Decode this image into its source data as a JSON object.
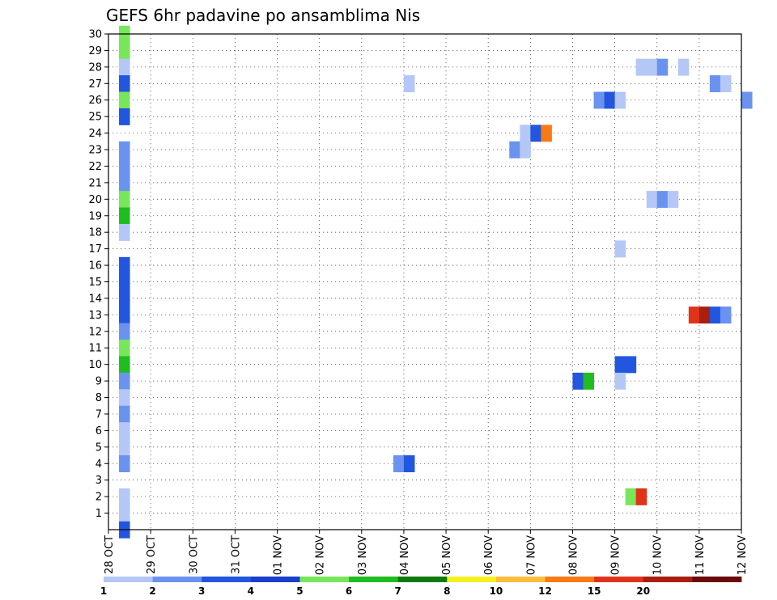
{
  "chart_data": {
    "type": "heatmap",
    "title": "GEFS 6hr padavine po ansamblima Nis",
    "xlabel": "",
    "ylabel": "",
    "x_tick_labels": [
      "28 OCT",
      "29 OCT",
      "30 OCT",
      "31 OCT",
      "01 NOV",
      "02 NOV",
      "03 NOV",
      "04 NOV",
      "05 NOV",
      "06 NOV",
      "07 NOV",
      "08 NOV",
      "09 NOV",
      "10 NOV",
      "11 NOV",
      "12 NOV"
    ],
    "x_unit": "days from 28 OCT",
    "y_tick_labels": [
      "1",
      "2",
      "3",
      "4",
      "5",
      "6",
      "7",
      "8",
      "9",
      "10",
      "11",
      "12",
      "13",
      "14",
      "15",
      "16",
      "17",
      "18",
      "19",
      "20",
      "21",
      "22",
      "23",
      "24",
      "25",
      "26",
      "27",
      "28",
      "29",
      "30"
    ],
    "y_range": [
      0,
      30
    ],
    "grid": true,
    "legend_position": "bottom",
    "levels": [
      {
        "label": "1",
        "color": "#b4c7f7"
      },
      {
        "label": "2",
        "color": "#6a93f0"
      },
      {
        "label": "3",
        "color": "#2256de"
      },
      {
        "label": "4",
        "color": "#1a3fcc"
      },
      {
        "label": "5",
        "color": "#78e65a"
      },
      {
        "label": "6",
        "color": "#1fbd1f"
      },
      {
        "label": "7",
        "color": "#0f7a0f"
      },
      {
        "label": "8",
        "color": "#f5f020"
      },
      {
        "label": "10",
        "color": "#fbbd3c"
      },
      {
        "label": "12",
        "color": "#f77a14"
      },
      {
        "label": "15",
        "color": "#e0331a"
      },
      {
        "label": "20",
        "color": "#a81e0f"
      },
      {
        "label": "",
        "color": "#6b0a0a"
      }
    ],
    "cells": [
      {
        "member": 30,
        "x": 0.25,
        "level": 4
      },
      {
        "member": 29,
        "x": 0.25,
        "level": 4
      },
      {
        "member": 28,
        "x": 0.25,
        "level": 0
      },
      {
        "member": 27,
        "x": 0.25,
        "level": 2
      },
      {
        "member": 26,
        "x": 0.25,
        "level": 4
      },
      {
        "member": 25,
        "x": 0.25,
        "level": 2
      },
      {
        "member": 23,
        "x": 0.25,
        "level": 1
      },
      {
        "member": 22,
        "x": 0.25,
        "level": 1
      },
      {
        "member": 21,
        "x": 0.25,
        "level": 1
      },
      {
        "member": 20,
        "x": 0.25,
        "level": 4
      },
      {
        "member": 19,
        "x": 0.25,
        "level": 5
      },
      {
        "member": 18,
        "x": 0.25,
        "level": 0
      },
      {
        "member": 16,
        "x": 0.25,
        "level": 2
      },
      {
        "member": 15,
        "x": 0.25,
        "level": 2
      },
      {
        "member": 14,
        "x": 0.25,
        "level": 2
      },
      {
        "member": 13,
        "x": 0.25,
        "level": 2
      },
      {
        "member": 12,
        "x": 0.25,
        "level": 1
      },
      {
        "member": 11,
        "x": 0.25,
        "level": 4
      },
      {
        "member": 10,
        "x": 0.25,
        "level": 5
      },
      {
        "member": 9,
        "x": 0.25,
        "level": 1
      },
      {
        "member": 8,
        "x": 0.25,
        "level": 0
      },
      {
        "member": 7,
        "x": 0.25,
        "level": 1
      },
      {
        "member": 6,
        "x": 0.25,
        "level": 0
      },
      {
        "member": 5,
        "x": 0.25,
        "level": 0
      },
      {
        "member": 4,
        "x": 0.25,
        "level": 1
      },
      {
        "member": 2,
        "x": 0.25,
        "level": 0
      },
      {
        "member": 1,
        "x": 0.25,
        "level": 0
      },
      {
        "member": 0,
        "x": 0.25,
        "level": 2
      },
      {
        "member": 28,
        "x": 12.5,
        "level": 0
      },
      {
        "member": 28,
        "x": 12.75,
        "level": 0
      },
      {
        "member": 28,
        "x": 13.0,
        "level": 1
      },
      {
        "member": 28,
        "x": 13.5,
        "level": 0
      },
      {
        "member": 27,
        "x": 7.0,
        "level": 0
      },
      {
        "member": 27,
        "x": 14.25,
        "level": 1
      },
      {
        "member": 27,
        "x": 14.5,
        "level": 0
      },
      {
        "member": 26,
        "x": 11.5,
        "level": 1
      },
      {
        "member": 26,
        "x": 11.75,
        "level": 2
      },
      {
        "member": 26,
        "x": 12.0,
        "level": 0
      },
      {
        "member": 26,
        "x": 15.0,
        "level": 1
      },
      {
        "member": 24,
        "x": 9.75,
        "level": 0
      },
      {
        "member": 24,
        "x": 10.0,
        "level": 2
      },
      {
        "member": 24,
        "x": 10.25,
        "level": 9
      },
      {
        "member": 23,
        "x": 9.5,
        "level": 1
      },
      {
        "member": 23,
        "x": 9.75,
        "level": 0
      },
      {
        "member": 20,
        "x": 12.75,
        "level": 0
      },
      {
        "member": 20,
        "x": 13.0,
        "level": 1
      },
      {
        "member": 20,
        "x": 13.25,
        "level": 0
      },
      {
        "member": 17,
        "x": 12.0,
        "level": 0
      },
      {
        "member": 13,
        "x": 13.75,
        "level": 10
      },
      {
        "member": 13,
        "x": 14.0,
        "level": 11
      },
      {
        "member": 13,
        "x": 14.25,
        "level": 2
      },
      {
        "member": 13,
        "x": 14.5,
        "level": 1
      },
      {
        "member": 10,
        "x": 12.0,
        "level": 2
      },
      {
        "member": 10,
        "x": 12.25,
        "level": 2
      },
      {
        "member": 9,
        "x": 11.0,
        "level": 2
      },
      {
        "member": 9,
        "x": 11.25,
        "level": 5
      },
      {
        "member": 9,
        "x": 12.0,
        "level": 0
      },
      {
        "member": 4,
        "x": 6.75,
        "level": 1
      },
      {
        "member": 4,
        "x": 7.0,
        "level": 2
      },
      {
        "member": 2,
        "x": 12.25,
        "level": 4
      },
      {
        "member": 2,
        "x": 12.5,
        "level": 10
      }
    ]
  }
}
